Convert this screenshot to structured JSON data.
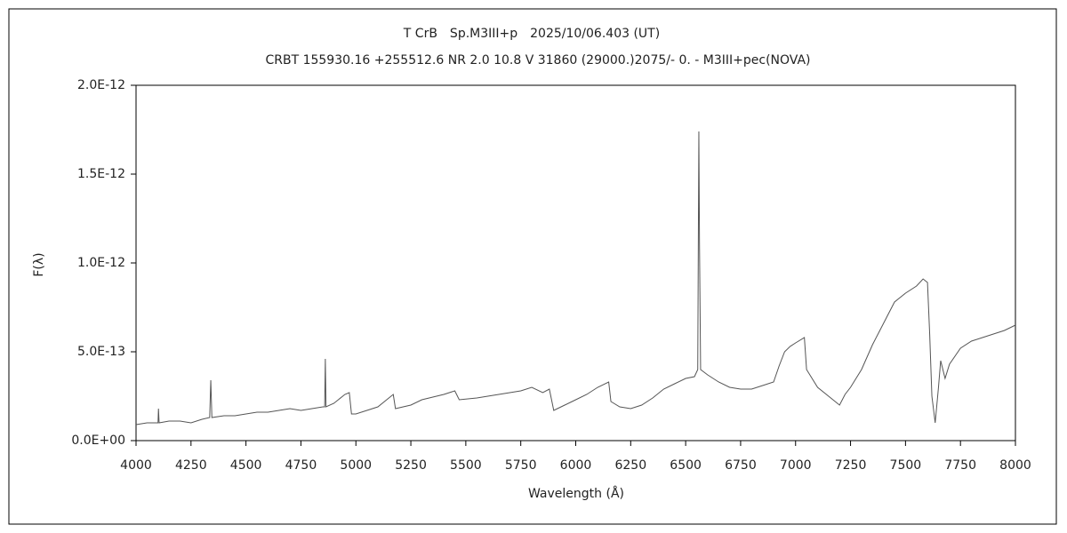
{
  "chart_data": {
    "type": "line",
    "title": "T CrB　Sp.M3III+p　2025/10/06.403 (UT)",
    "subtitle": "CRBT 155930.16 +255512.6 NR 2.0 10.8 V 31860 (29000.)2075/-  0. - M3III+pec(NOVA)",
    "xlabel": "Wavelength (Å)",
    "ylabel": "F(λ)",
    "color": "#555555",
    "xlim": [
      4000,
      8000
    ],
    "xticks": [
      4000,
      4250,
      4500,
      4750,
      5000,
      5250,
      5500,
      5750,
      6000,
      6250,
      6500,
      6750,
      7000,
      7250,
      7500,
      7750,
      8000
    ],
    "ylim": [
      0,
      2e-12
    ],
    "yticks": [
      {
        "value": 0,
        "label": "0.0E+00"
      },
      {
        "value": 5e-13,
        "label": "5.0E-13"
      },
      {
        "value": 1e-12,
        "label": "1.0E-12"
      },
      {
        "value": 1.5e-12,
        "label": "1.5E-12"
      },
      {
        "value": 2e-12,
        "label": "2.0E-12"
      }
    ],
    "x": [
      4000,
      4050,
      4100,
      4102,
      4105,
      4150,
      4200,
      4250,
      4300,
      4335,
      4340,
      4345,
      4400,
      4450,
      4500,
      4550,
      4600,
      4650,
      4700,
      4750,
      4800,
      4850,
      4858,
      4861,
      4864,
      4900,
      4950,
      4970,
      4980,
      5000,
      5100,
      5150,
      5170,
      5180,
      5250,
      5300,
      5400,
      5450,
      5470,
      5550,
      5650,
      5750,
      5800,
      5850,
      5880,
      5900,
      5950,
      6000,
      6050,
      6100,
      6150,
      6160,
      6200,
      6250,
      6300,
      6350,
      6400,
      6450,
      6500,
      6540,
      6555,
      6560,
      6563,
      6568,
      6600,
      6650,
      6700,
      6750,
      6800,
      6850,
      6900,
      6925,
      6950,
      6975,
      7000,
      7040,
      7050,
      7075,
      7100,
      7150,
      7200,
      7225,
      7250,
      7300,
      7350,
      7400,
      7450,
      7500,
      7550,
      7580,
      7600,
      7610,
      7620,
      7635,
      7650,
      7660,
      7680,
      7700,
      7750,
      7800,
      7850,
      7900,
      7950,
      8000
    ],
    "values": [
      9e-14,
      1e-13,
      1e-13,
      1.8e-13,
      1e-13,
      1.1e-13,
      1.1e-13,
      1e-13,
      1.2e-13,
      1.3e-13,
      3.4e-13,
      1.3e-13,
      1.4e-13,
      1.4e-13,
      1.5e-13,
      1.6e-13,
      1.6e-13,
      1.7e-13,
      1.8e-13,
      1.7e-13,
      1.8e-13,
      1.9e-13,
      1.9e-13,
      4.6e-13,
      1.9e-13,
      2.1e-13,
      2.6e-13,
      2.7e-13,
      1.5e-13,
      1.5e-13,
      1.9e-13,
      2.4e-13,
      2.6e-13,
      1.8e-13,
      2e-13,
      2.3e-13,
      2.6e-13,
      2.8e-13,
      2.3e-13,
      2.4e-13,
      2.6e-13,
      2.8e-13,
      3e-13,
      2.7e-13,
      2.9e-13,
      1.7e-13,
      2e-13,
      2.3e-13,
      2.6e-13,
      3e-13,
      3.3e-13,
      2.2e-13,
      1.9e-13,
      1.8e-13,
      2e-13,
      2.4e-13,
      2.9e-13,
      3.2e-13,
      3.5e-13,
      3.6e-13,
      4e-13,
      1.74e-12,
      1.1e-12,
      4e-13,
      3.7e-13,
      3.3e-13,
      3e-13,
      2.9e-13,
      2.9e-13,
      3.1e-13,
      3.3e-13,
      4.2e-13,
      5e-13,
      5.3e-13,
      5.5e-13,
      5.8e-13,
      4e-13,
      3.5e-13,
      3e-13,
      2.5e-13,
      2e-13,
      2.6e-13,
      3e-13,
      4e-13,
      5.4e-13,
      6.6e-13,
      7.8e-13,
      8.3e-13,
      8.7e-13,
      9.1e-13,
      8.9e-13,
      6e-13,
      2.5e-13,
      1e-13,
      3e-13,
      4.5e-13,
      3.5e-13,
      4.3e-13,
      5.2e-13,
      5.6e-13,
      5.8e-13,
      6e-13,
      6.2e-13,
      6.5e-13
    ]
  }
}
